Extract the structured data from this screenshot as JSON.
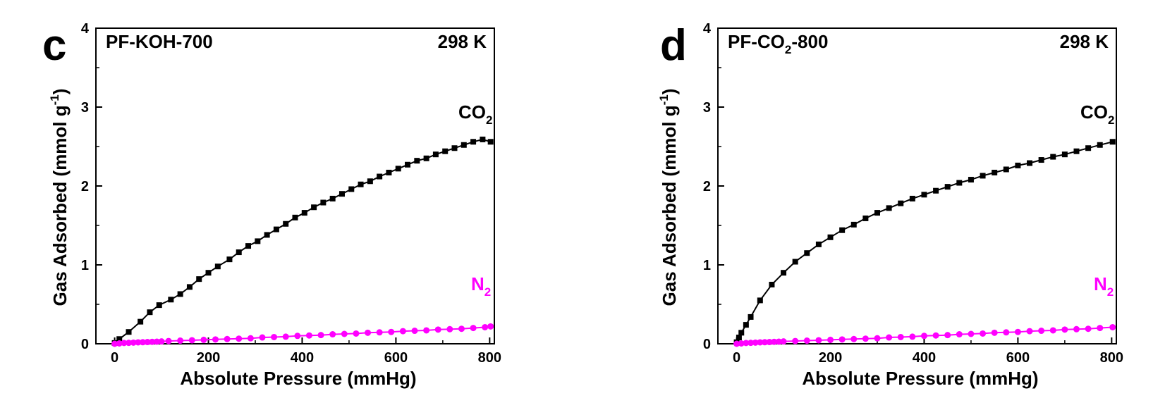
{
  "chart_data": [
    {
      "type": "line",
      "panel_letter": "c",
      "sample_label": {
        "main": "PF-KOH-700",
        "sub": "",
        "tail": ""
      },
      "temperature_label": "298 K",
      "xlabel": "Absolute Pressure (mmHg)",
      "ylabel": {
        "main": "Gas Adsorbed (mmol g",
        "sup": "-1",
        "tail": ")"
      },
      "xlim": [
        -40,
        810
      ],
      "ylim": [
        0,
        4
      ],
      "xticks": [
        0,
        200,
        400,
        600,
        800
      ],
      "yticks": [
        0,
        1,
        2,
        3,
        4
      ],
      "grid": false,
      "series": [
        {
          "name": "CO",
          "name_sub": "2",
          "color": "#000000",
          "marker": "square",
          "x": [
            0,
            10,
            30,
            55,
            75,
            95,
            120,
            140,
            160,
            180,
            200,
            220,
            245,
            265,
            285,
            305,
            325,
            345,
            365,
            385,
            405,
            425,
            445,
            465,
            485,
            505,
            525,
            545,
            565,
            585,
            605,
            625,
            645,
            665,
            685,
            705,
            725,
            745,
            765,
            785,
            802
          ],
          "y": [
            0.01,
            0.06,
            0.15,
            0.28,
            0.4,
            0.49,
            0.56,
            0.63,
            0.72,
            0.82,
            0.9,
            0.98,
            1.07,
            1.16,
            1.24,
            1.3,
            1.38,
            1.45,
            1.52,
            1.6,
            1.66,
            1.73,
            1.79,
            1.84,
            1.9,
            1.96,
            2.02,
            2.06,
            2.12,
            2.17,
            2.22,
            2.27,
            2.32,
            2.35,
            2.4,
            2.44,
            2.48,
            2.52,
            2.56,
            2.59,
            2.56
          ]
        },
        {
          "name": "N",
          "name_sub": "2",
          "color": "#ff00ff",
          "marker": "circle",
          "x": [
            0,
            10,
            20,
            30,
            40,
            50,
            60,
            70,
            80,
            90,
            100,
            115,
            140,
            165,
            190,
            215,
            240,
            265,
            290,
            315,
            340,
            365,
            390,
            415,
            440,
            465,
            490,
            515,
            540,
            565,
            590,
            615,
            640,
            665,
            690,
            715,
            740,
            765,
            790,
            802
          ],
          "y": [
            0.0,
            0.005,
            0.01,
            0.012,
            0.015,
            0.018,
            0.02,
            0.022,
            0.025,
            0.027,
            0.03,
            0.035,
            0.04,
            0.045,
            0.05,
            0.055,
            0.06,
            0.065,
            0.07,
            0.08,
            0.085,
            0.09,
            0.1,
            0.105,
            0.11,
            0.12,
            0.125,
            0.13,
            0.14,
            0.145,
            0.15,
            0.16,
            0.165,
            0.17,
            0.18,
            0.185,
            0.19,
            0.2,
            0.21,
            0.22
          ]
        }
      ]
    },
    {
      "type": "line",
      "panel_letter": "d",
      "sample_label": {
        "main": "PF-CO",
        "sub": "2",
        "tail": "-800"
      },
      "temperature_label": "298 K",
      "xlabel": "Absolute Pressure (mmHg)",
      "ylabel": {
        "main": "Gas Adsorbed (mmol g",
        "sup": "-1",
        "tail": ")"
      },
      "xlim": [
        -40,
        810
      ],
      "ylim": [
        0,
        4
      ],
      "xticks": [
        0,
        200,
        400,
        600,
        800
      ],
      "yticks": [
        0,
        1,
        2,
        3,
        4
      ],
      "grid": false,
      "series": [
        {
          "name": "CO",
          "name_sub": "2",
          "color": "#000000",
          "marker": "square",
          "x": [
            0,
            5,
            10,
            20,
            30,
            50,
            75,
            100,
            125,
            150,
            175,
            200,
            225,
            250,
            275,
            300,
            325,
            350,
            375,
            400,
            425,
            450,
            475,
            500,
            525,
            550,
            575,
            600,
            625,
            650,
            675,
            700,
            725,
            750,
            775,
            802
          ],
          "y": [
            0.02,
            0.08,
            0.14,
            0.24,
            0.34,
            0.55,
            0.75,
            0.9,
            1.04,
            1.15,
            1.26,
            1.35,
            1.44,
            1.51,
            1.59,
            1.66,
            1.72,
            1.78,
            1.84,
            1.89,
            1.94,
            1.99,
            2.04,
            2.08,
            2.13,
            2.17,
            2.21,
            2.26,
            2.29,
            2.33,
            2.37,
            2.4,
            2.44,
            2.48,
            2.52,
            2.56
          ]
        },
        {
          "name": "N",
          "name_sub": "2",
          "color": "#ff00ff",
          "marker": "circle",
          "x": [
            0,
            10,
            20,
            30,
            40,
            50,
            60,
            70,
            80,
            90,
            100,
            125,
            150,
            175,
            200,
            225,
            250,
            275,
            300,
            325,
            350,
            375,
            400,
            425,
            450,
            475,
            500,
            525,
            550,
            575,
            600,
            625,
            650,
            675,
            700,
            725,
            750,
            775,
            802
          ],
          "y": [
            0.0,
            0.005,
            0.01,
            0.012,
            0.015,
            0.018,
            0.02,
            0.022,
            0.025,
            0.027,
            0.03,
            0.035,
            0.04,
            0.045,
            0.05,
            0.055,
            0.06,
            0.065,
            0.07,
            0.08,
            0.085,
            0.09,
            0.1,
            0.105,
            0.11,
            0.12,
            0.125,
            0.13,
            0.14,
            0.145,
            0.15,
            0.16,
            0.165,
            0.17,
            0.18,
            0.185,
            0.19,
            0.2,
            0.21
          ]
        }
      ]
    }
  ]
}
